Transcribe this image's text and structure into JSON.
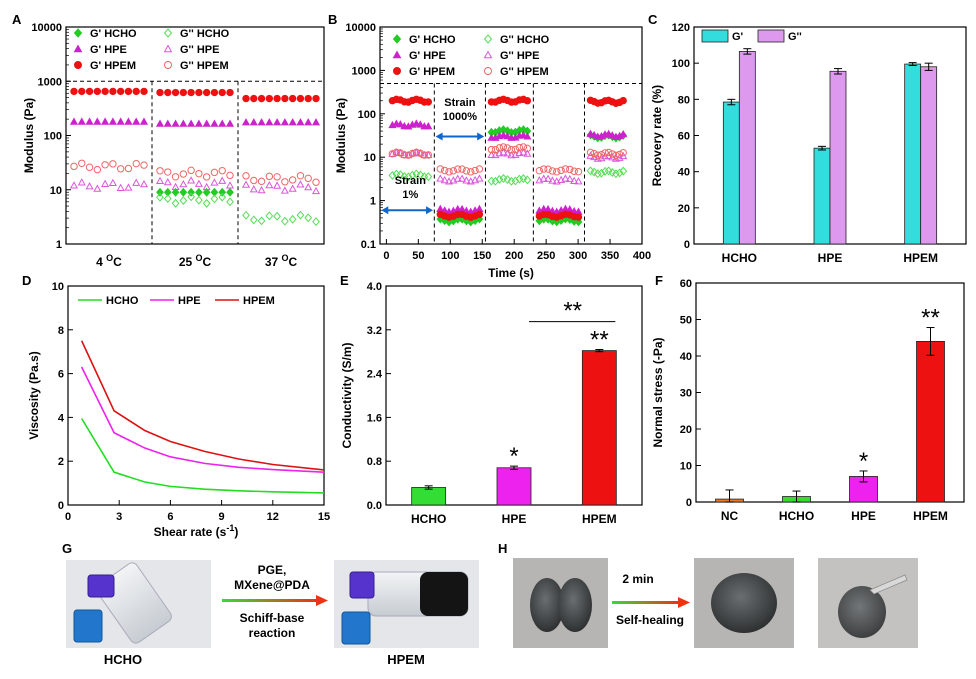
{
  "panel_letters": [
    "A",
    "B",
    "C",
    "D",
    "E",
    "F",
    "G",
    "H"
  ],
  "chart_data": [
    {
      "id": "A",
      "type": "scatter",
      "ylabel": "Modulus (Pa)",
      "yscale": "log",
      "ylim": [
        1,
        10000
      ],
      "yticks": [
        "1",
        "10",
        "100",
        "1000",
        "10000"
      ],
      "groups": [
        "4 °C",
        "25 °C",
        "37 °C"
      ],
      "groups_base": [
        "4 ",
        "25 ",
        "37 "
      ],
      "groups_sup": [
        "O",
        "O",
        "O"
      ],
      "groups_tail": [
        "C",
        "C",
        "C"
      ],
      "legend": [
        "G' HCHO",
        "G' HPE",
        "G' HPEM",
        "G'' HCHO",
        "G'' HPE",
        "G'' HPEM"
      ],
      "legend_position": "top-left",
      "series": [
        {
          "name": "G' HCHO",
          "color": "#22cc22",
          "marker": "diamond",
          "filled": true,
          "values": [
            null,
            9,
            null
          ]
        },
        {
          "name": "G' HPE",
          "color": "#cc22cc",
          "marker": "triangle",
          "filled": true,
          "values": [
            180,
            165,
            175
          ]
        },
        {
          "name": "G' HPEM",
          "color": "#ee1111",
          "marker": "circle",
          "filled": true,
          "values": [
            650,
            620,
            480
          ]
        },
        {
          "name": "G'' HCHO",
          "color": "#55dd55",
          "marker": "diamond",
          "filled": false,
          "values": [
            null,
            6.5,
            3
          ]
        },
        {
          "name": "G'' HPE",
          "color": "#dd55dd",
          "marker": "triangle",
          "filled": false,
          "values": [
            12,
            13,
            11
          ]
        },
        {
          "name": "G'' HPEM",
          "color": "#ee6666",
          "marker": "circle",
          "filled": false,
          "values": [
            27,
            20,
            16
          ]
        }
      ]
    },
    {
      "id": "B",
      "type": "scatter",
      "xlabel": "Time (s)",
      "ylabel": "Modulus (Pa)",
      "yscale": "log",
      "ylim": [
        0.1,
        10000
      ],
      "xlim": [
        -10,
        400
      ],
      "xticks": [
        0,
        50,
        100,
        150,
        200,
        250,
        300,
        350,
        400
      ],
      "yticks": [
        "0.1",
        "1",
        "10",
        "100",
        "1000",
        "10000"
      ],
      "legend": [
        "G' HCHO",
        "G' HPE",
        "G' HPEM",
        "G'' HCHO",
        "G'' HPE",
        "G'' HPEM"
      ],
      "legend_position": "top-left",
      "annotations": [
        "Strain",
        "1%",
        "Strain",
        "1000%"
      ],
      "segment_bounds": [
        0,
        75,
        155,
        230,
        310,
        380
      ],
      "series": [
        {
          "name": "G' HCHO",
          "color": "#22cc22",
          "marker": "diamond",
          "filled": true,
          "values": [
            null,
            0.35,
            40,
            0.35,
            30
          ]
        },
        {
          "name": "G' HPE",
          "color": "#cc22cc",
          "marker": "triangle",
          "filled": true,
          "values": [
            55,
            0.6,
            30,
            0.6,
            32
          ]
        },
        {
          "name": "G' HPEM",
          "color": "#ee1111",
          "marker": "circle",
          "filled": true,
          "values": [
            200,
            0.45,
            200,
            0.45,
            190
          ]
        },
        {
          "name": "G'' HCHO",
          "color": "#55dd55",
          "marker": "diamond",
          "filled": false,
          "values": [
            3.8,
            null,
            3,
            null,
            4.5
          ]
        },
        {
          "name": "G'' HPE",
          "color": "#dd55dd",
          "marker": "triangle",
          "filled": false,
          "values": [
            12,
            3,
            12,
            3,
            10
          ]
        },
        {
          "name": "G'' HPEM",
          "color": "#ee6666",
          "marker": "circle",
          "filled": false,
          "values": [
            12,
            5,
            16,
            5,
            12
          ]
        }
      ]
    },
    {
      "id": "C",
      "type": "bar",
      "ylabel": "Recovery rate (%)",
      "ylim": [
        0,
        120
      ],
      "yticks": [
        0,
        20,
        40,
        60,
        80,
        100,
        120
      ],
      "categories": [
        "HCHO",
        "HPE",
        "HPEM"
      ],
      "legend_position": "top-left",
      "series": [
        {
          "name": "G'",
          "color": "#33dddd",
          "values": [
            78.5,
            53,
            99.5
          ],
          "errors": [
            1.5,
            1,
            0.8
          ]
        },
        {
          "name": "G''",
          "color": "#dd99ee",
          "values": [
            106.5,
            95.5,
            98
          ],
          "errors": [
            1.5,
            1.5,
            2
          ]
        }
      ]
    },
    {
      "id": "D",
      "type": "line",
      "xlabel_base": "Shear rate (s",
      "xlabel_sup": "-1",
      "xlabel_tail": ")",
      "ylabel": "Viscosity (Pa.s)",
      "xlim": [
        0,
        15
      ],
      "ylim": [
        0,
        10
      ],
      "xticks": [
        0,
        3,
        6,
        9,
        12,
        15
      ],
      "yticks": [
        0,
        2,
        4,
        6,
        8,
        10
      ],
      "legend_position": "top",
      "series": [
        {
          "name": "HCHO",
          "color": "#22dd22",
          "x": [
            0.8,
            2.7,
            4.5,
            6,
            8,
            10,
            12,
            15
          ],
          "y": [
            3.95,
            1.5,
            1.05,
            0.85,
            0.72,
            0.65,
            0.6,
            0.55
          ]
        },
        {
          "name": "HPE",
          "color": "#ee22ee",
          "x": [
            0.8,
            2.7,
            4.5,
            6,
            8,
            10,
            12,
            15
          ],
          "y": [
            6.3,
            3.3,
            2.6,
            2.2,
            1.9,
            1.72,
            1.62,
            1.5
          ]
        },
        {
          "name": "HPEM",
          "color": "#dd1111",
          "x": [
            0.8,
            2.7,
            4.5,
            6,
            8,
            10,
            12,
            15
          ],
          "y": [
            7.5,
            4.3,
            3.4,
            2.9,
            2.45,
            2.1,
            1.85,
            1.6
          ]
        }
      ]
    },
    {
      "id": "E",
      "type": "bar",
      "ylabel": "Conductivity (S/m)",
      "ylim": [
        0,
        4.0
      ],
      "yticks": [
        "0.0",
        "0.8",
        "1.6",
        "2.4",
        "3.2",
        "4.0"
      ],
      "categories": [
        "HCHO",
        "HPE",
        "HPEM"
      ],
      "colors": [
        "#33dd33",
        "#ee22ee",
        "#ee1111"
      ],
      "values": [
        0.32,
        0.68,
        2.82
      ],
      "errors": [
        0.03,
        0.03,
        0.02
      ],
      "annotations": [
        "*",
        "**",
        "**"
      ]
    },
    {
      "id": "F",
      "type": "bar",
      "ylabel": "Normal stress (-Pa)",
      "ylim": [
        0,
        60
      ],
      "yticks": [
        0,
        10,
        20,
        30,
        40,
        50,
        60
      ],
      "categories": [
        "NC",
        "HCHO",
        "HPE",
        "HPEM"
      ],
      "colors": [
        "#ee7722",
        "#33dd33",
        "#ee22ee",
        "#ee1111"
      ],
      "values": [
        0.8,
        1.5,
        7,
        44
      ],
      "errors": [
        2.5,
        1.5,
        1.5,
        3.8
      ],
      "annotations": [
        "*",
        "**"
      ]
    }
  ],
  "photo_G": {
    "left_label": "HCHO",
    "right_label": "HPEM",
    "arrow_top": [
      "PGE,",
      "MXene@PDA"
    ],
    "arrow_bottom": [
      "Schiff-base",
      "reaction"
    ]
  },
  "photo_H": {
    "arrow_top": "2 min",
    "arrow_bottom": "Self-healing"
  }
}
